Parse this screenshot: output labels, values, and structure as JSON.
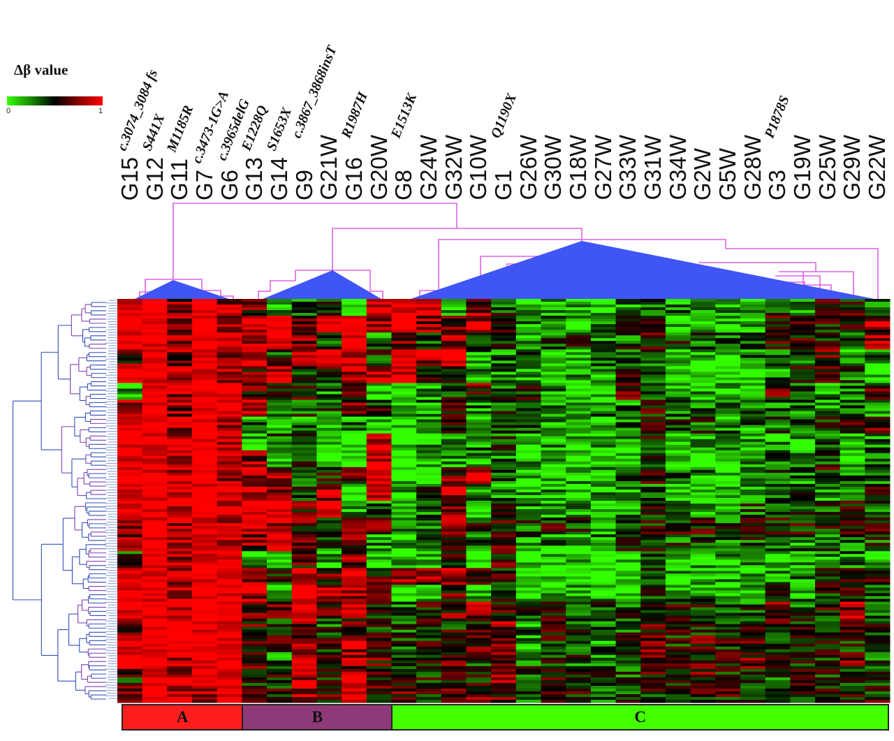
{
  "chart_data": {
    "type": "heatmap",
    "colorbar": {
      "title": "Δβ value",
      "min_label": "0",
      "max_label": "1",
      "range": [
        0,
        1
      ],
      "colors": {
        "low": "#33ff00",
        "mid": "#000000",
        "high": "#ff0000"
      }
    },
    "columns": [
      {
        "id": "G15",
        "mutation": "c.3074_3084 fs"
      },
      {
        "id": "G12",
        "mutation": "S441X"
      },
      {
        "id": "G11",
        "mutation": "M1185R"
      },
      {
        "id": "G7",
        "mutation": "c.3473-1G>A"
      },
      {
        "id": "G6",
        "mutation": "c.3965delG"
      },
      {
        "id": "G13",
        "mutation": "E1228Q"
      },
      {
        "id": "G14",
        "mutation": "S1653X"
      },
      {
        "id": "G9",
        "mutation": "c.3867_3868insT"
      },
      {
        "id": "G21W",
        "mutation": ""
      },
      {
        "id": "G16",
        "mutation": "R1987H"
      },
      {
        "id": "G20W",
        "mutation": ""
      },
      {
        "id": "G8",
        "mutation": "E1513K"
      },
      {
        "id": "G24W",
        "mutation": ""
      },
      {
        "id": "G32W",
        "mutation": ""
      },
      {
        "id": "G10W",
        "mutation": ""
      },
      {
        "id": "G1",
        "mutation": "Q1190X"
      },
      {
        "id": "G26W",
        "mutation": ""
      },
      {
        "id": "G30W",
        "mutation": ""
      },
      {
        "id": "G18W",
        "mutation": ""
      },
      {
        "id": "G27W",
        "mutation": ""
      },
      {
        "id": "G33W",
        "mutation": ""
      },
      {
        "id": "G31W",
        "mutation": ""
      },
      {
        "id": "G34W",
        "mutation": ""
      },
      {
        "id": "G2W",
        "mutation": ""
      },
      {
        "id": "G5W",
        "mutation": ""
      },
      {
        "id": "G28W",
        "mutation": ""
      },
      {
        "id": "G3",
        "mutation": "P1878S"
      },
      {
        "id": "G19W",
        "mutation": ""
      },
      {
        "id": "G25W",
        "mutation": ""
      },
      {
        "id": "G29W",
        "mutation": ""
      },
      {
        "id": "G22W",
        "mutation": ""
      }
    ],
    "groups": [
      {
        "label": "A",
        "color": "#ff1e1e",
        "column_count": 5
      },
      {
        "label": "B",
        "color": "#8e3a78",
        "column_count": 6
      },
      {
        "label": "C",
        "color": "#44ff00",
        "column_count": 20
      }
    ],
    "values": [
      [
        0.9,
        0.9,
        0.7,
        0.9,
        0.8,
        0.6,
        0.2,
        0.3,
        0.5,
        0.1,
        0.8,
        0.9,
        0.8,
        0.2,
        0.7,
        0.4,
        0.2,
        0.2,
        0.2,
        0.2,
        0.3,
        0.4,
        0.3,
        0.3,
        0.2,
        0.3,
        0.4,
        0.3,
        0.5,
        0.5,
        0.4
      ],
      [
        0.9,
        0.9,
        0.7,
        0.9,
        0.8,
        0.8,
        0.9,
        0.7,
        0.9,
        0.9,
        0.8,
        0.9,
        0.7,
        0.7,
        0.8,
        0.5,
        0.3,
        0.3,
        0.2,
        0.3,
        0.4,
        0.5,
        0.2,
        0.2,
        0.2,
        0.2,
        0.6,
        0.6,
        0.5,
        0.5,
        0.7
      ],
      [
        0.9,
        0.9,
        0.8,
        0.9,
        0.8,
        0.8,
        0.9,
        0.7,
        0.4,
        0.9,
        0.3,
        0.7,
        0.4,
        0.7,
        0.5,
        0.5,
        0.3,
        0.4,
        0.4,
        0.3,
        0.4,
        0.5,
        0.4,
        0.4,
        0.4,
        0.4,
        0.6,
        0.5,
        0.5,
        0.4,
        0.8
      ],
      [
        0.6,
        0.9,
        0.7,
        0.9,
        0.8,
        0.8,
        0.4,
        0.8,
        0.9,
        0.8,
        0.4,
        0.9,
        0.8,
        0.9,
        0.3,
        0.3,
        0.3,
        0.2,
        0.2,
        0.3,
        0.4,
        0.4,
        0.2,
        0.2,
        0.2,
        0.3,
        0.3,
        0.3,
        0.6,
        0.2,
        0.3
      ],
      [
        0.9,
        0.9,
        0.8,
        0.9,
        0.8,
        0.6,
        0.8,
        0.5,
        0.5,
        0.8,
        0.8,
        0.8,
        0.5,
        0.6,
        0.3,
        0.3,
        0.2,
        0.2,
        0.2,
        0.2,
        0.5,
        0.4,
        0.1,
        0.1,
        0.1,
        0.1,
        0.3,
        0.5,
        0.6,
        0.4,
        0.2
      ],
      [
        0.3,
        0.9,
        0.7,
        0.9,
        0.8,
        0.6,
        0.6,
        0.5,
        0.3,
        0.6,
        0.2,
        0.1,
        0.2,
        0.5,
        0.6,
        0.4,
        0.5,
        0.3,
        0.2,
        0.2,
        0.6,
        0.4,
        0.2,
        0.2,
        0.2,
        0.2,
        0.6,
        0.4,
        0.3,
        0.3,
        0.6
      ],
      [
        0.8,
        0.9,
        0.7,
        0.9,
        0.9,
        0.8,
        0.3,
        0.4,
        0.4,
        0.6,
        0.5,
        0.2,
        0.3,
        0.6,
        0.3,
        0.4,
        0.4,
        0.3,
        0.2,
        0.3,
        0.3,
        0.5,
        0.3,
        0.3,
        0.3,
        0.3,
        0.3,
        0.3,
        0.3,
        0.4,
        0.3
      ],
      [
        0.9,
        0.9,
        0.8,
        0.9,
        0.8,
        0.3,
        0.3,
        0.3,
        0.3,
        0.3,
        0.2,
        0.1,
        0.2,
        0.5,
        0.3,
        0.5,
        0.3,
        0.3,
        0.2,
        0.2,
        0.3,
        0.5,
        0.4,
        0.4,
        0.3,
        0.3,
        0.4,
        0.3,
        0.4,
        0.5,
        0.6
      ],
      [
        0.9,
        0.9,
        0.8,
        0.9,
        0.8,
        0.2,
        0.4,
        0.4,
        0.1,
        0.1,
        0.8,
        0.1,
        0.2,
        0.2,
        0.3,
        0.4,
        0.2,
        0.2,
        0.2,
        0.2,
        0.2,
        0.5,
        0.2,
        0.2,
        0.2,
        0.2,
        0.3,
        0.2,
        0.4,
        0.2,
        0.3
      ],
      [
        0.9,
        0.9,
        0.8,
        0.9,
        0.8,
        0.7,
        0.2,
        0.4,
        0.1,
        0.2,
        0.8,
        0.1,
        0.2,
        0.3,
        0.2,
        0.3,
        0.2,
        0.2,
        0.1,
        0.1,
        0.1,
        0.4,
        0.1,
        0.1,
        0.1,
        0.2,
        0.3,
        0.2,
        0.4,
        0.2,
        0.3
      ],
      [
        0.9,
        0.9,
        0.8,
        0.9,
        0.8,
        0.8,
        0.7,
        0.4,
        0.5,
        0.6,
        0.9,
        0.2,
        0.2,
        0.6,
        0.8,
        0.4,
        0.2,
        0.2,
        0.2,
        0.2,
        0.3,
        0.5,
        0.3,
        0.3,
        0.2,
        0.2,
        0.4,
        0.3,
        0.5,
        0.3,
        0.3
      ],
      [
        0.9,
        0.9,
        0.8,
        0.9,
        0.9,
        0.8,
        0.8,
        0.4,
        0.8,
        0.2,
        0.8,
        0.2,
        0.4,
        0.8,
        0.3,
        0.3,
        0.2,
        0.2,
        0.2,
        0.2,
        0.2,
        0.4,
        0.2,
        0.2,
        0.2,
        0.2,
        0.3,
        0.5,
        0.3,
        0.3,
        0.6
      ],
      [
        0.9,
        0.9,
        0.8,
        0.9,
        0.8,
        0.9,
        0.9,
        0.6,
        0.9,
        0.2,
        0.3,
        0.2,
        0.3,
        0.7,
        0.2,
        0.4,
        0.3,
        0.2,
        0.2,
        0.2,
        0.3,
        0.5,
        0.4,
        0.3,
        0.3,
        0.4,
        0.3,
        0.4,
        0.4,
        0.5,
        0.4
      ],
      [
        0.7,
        0.9,
        0.8,
        0.9,
        0.8,
        0.8,
        0.8,
        0.6,
        0.5,
        0.7,
        0.6,
        0.4,
        0.4,
        0.7,
        0.5,
        0.6,
        0.4,
        0.5,
        0.4,
        0.3,
        0.4,
        0.5,
        0.5,
        0.5,
        0.4,
        0.5,
        0.5,
        0.5,
        0.5,
        0.5,
        0.5
      ],
      [
        0.7,
        0.9,
        0.8,
        0.9,
        0.8,
        0.7,
        0.7,
        0.6,
        0.4,
        0.6,
        0.3,
        0.2,
        0.3,
        0.5,
        0.4,
        0.6,
        0.3,
        0.3,
        0.3,
        0.3,
        0.4,
        0.5,
        0.4,
        0.4,
        0.3,
        0.4,
        0.4,
        0.3,
        0.4,
        0.4,
        0.4
      ],
      [
        0.4,
        0.9,
        0.8,
        0.9,
        0.9,
        0.2,
        0.1,
        0.6,
        0.2,
        0.7,
        0.1,
        0.2,
        0.2,
        0.5,
        0.1,
        0.6,
        0.2,
        0.2,
        0.2,
        0.2,
        0.2,
        0.4,
        0.2,
        0.2,
        0.2,
        0.2,
        0.2,
        0.2,
        0.3,
        0.3,
        0.2
      ],
      [
        0.9,
        0.9,
        0.8,
        0.9,
        0.9,
        0.7,
        0.5,
        0.8,
        0.6,
        0.9,
        0.6,
        0.8,
        0.7,
        0.7,
        0.6,
        0.5,
        0.2,
        0.2,
        0.1,
        0.1,
        0.2,
        0.4,
        0.2,
        0.2,
        0.2,
        0.2,
        0.3,
        0.3,
        0.5,
        0.6,
        0.6
      ],
      [
        0.9,
        0.9,
        0.8,
        0.9,
        0.9,
        0.8,
        0.3,
        0.9,
        0.8,
        0.8,
        0.8,
        0.1,
        0.2,
        0.6,
        0.2,
        0.5,
        0.2,
        0.2,
        0.2,
        0.2,
        0.2,
        0.4,
        0.3,
        0.3,
        0.2,
        0.3,
        0.5,
        0.3,
        0.5,
        0.5,
        0.3
      ],
      [
        0.9,
        0.9,
        0.8,
        0.9,
        0.9,
        0.6,
        0.6,
        0.9,
        0.6,
        0.8,
        0.5,
        0.4,
        0.5,
        0.6,
        0.7,
        0.6,
        0.4,
        0.5,
        0.4,
        0.4,
        0.4,
        0.5,
        0.5,
        0.5,
        0.4,
        0.4,
        0.6,
        0.4,
        0.5,
        0.7,
        0.3
      ],
      [
        0.6,
        0.9,
        0.9,
        0.9,
        0.9,
        0.6,
        0.5,
        0.7,
        0.4,
        0.6,
        0.5,
        0.4,
        0.5,
        0.5,
        0.5,
        0.7,
        0.3,
        0.5,
        0.4,
        0.3,
        0.4,
        0.6,
        0.5,
        0.5,
        0.5,
        0.5,
        0.5,
        0.5,
        0.5,
        0.6,
        0.5
      ],
      [
        0.9,
        0.9,
        0.9,
        0.9,
        0.9,
        0.6,
        0.5,
        0.7,
        0.5,
        0.8,
        0.6,
        0.4,
        0.5,
        0.6,
        0.6,
        0.7,
        0.3,
        0.5,
        0.4,
        0.3,
        0.4,
        0.6,
        0.5,
        0.6,
        0.5,
        0.6,
        0.5,
        0.5,
        0.5,
        0.5,
        0.4
      ],
      [
        0.9,
        0.9,
        0.8,
        0.9,
        0.9,
        0.6,
        0.3,
        0.8,
        0.5,
        0.7,
        0.6,
        0.4,
        0.5,
        0.6,
        0.4,
        0.7,
        0.4,
        0.5,
        0.4,
        0.3,
        0.4,
        0.6,
        0.6,
        0.6,
        0.5,
        0.6,
        0.5,
        0.5,
        0.5,
        0.6,
        0.4
      ],
      [
        0.5,
        0.9,
        0.8,
        0.9,
        0.9,
        0.5,
        0.5,
        0.8,
        0.5,
        0.8,
        0.5,
        0.5,
        0.5,
        0.5,
        0.5,
        0.7,
        0.4,
        0.5,
        0.5,
        0.4,
        0.4,
        0.6,
        0.5,
        0.6,
        0.5,
        0.5,
        0.4,
        0.5,
        0.5,
        0.5,
        0.4
      ],
      [
        0.6,
        0.9,
        0.8,
        0.8,
        0.9,
        0.6,
        0.5,
        0.8,
        0.6,
        0.8,
        0.6,
        0.6,
        0.5,
        0.7,
        0.6,
        0.6,
        0.4,
        0.5,
        0.5,
        0.4,
        0.4,
        0.5,
        0.5,
        0.5,
        0.5,
        0.5,
        0.5,
        0.5,
        0.5,
        0.5,
        0.5
      ]
    ]
  }
}
